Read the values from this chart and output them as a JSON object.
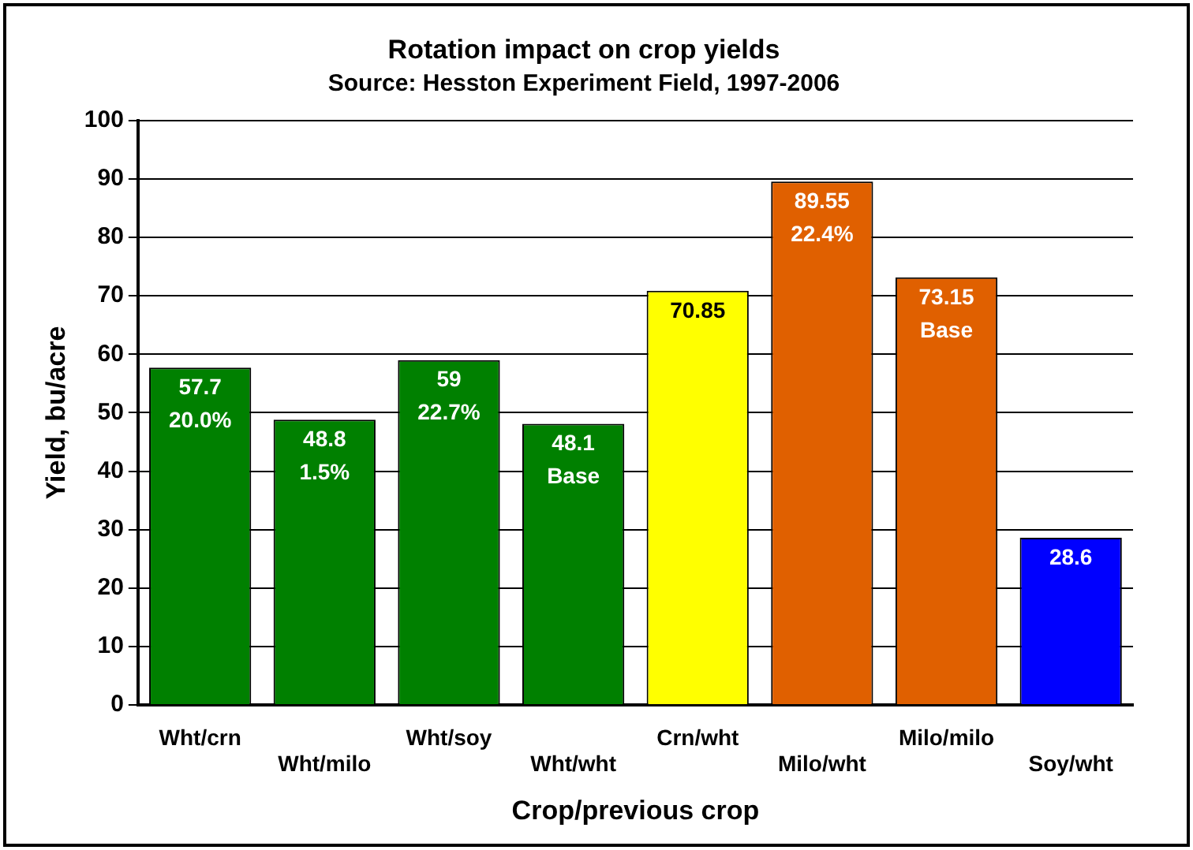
{
  "chart_data": {
    "type": "bar",
    "title": "Rotation impact on crop yields",
    "subtitle": "Source: Hesston Experiment Field, 1997-2006",
    "xlabel": "Crop/previous crop",
    "ylabel": "Yield, bu/acre",
    "categories": [
      "Wht/crn",
      "Wht/milo",
      "Wht/soy",
      "Wht/wht",
      "Crn/wht",
      "Milo/wht",
      "Milo/milo",
      "Soy/wht"
    ],
    "values": [
      57.7,
      48.8,
      59,
      48.1,
      70.85,
      89.55,
      73.15,
      28.6
    ],
    "colors": [
      "#008000",
      "#008000",
      "#008000",
      "#008000",
      "#ffff00",
      "#e06000",
      "#e06000",
      "#0000ff"
    ],
    "value_labels": [
      "57.7\n20.0%",
      "48.8\n1.5%",
      "59\n22.7%",
      "48.1\nBase",
      "70.85",
      "89.55\n22.4%",
      "73.15\nBase",
      "28.6"
    ],
    "ylim": [
      0,
      100
    ],
    "yticks": [
      0,
      10,
      20,
      30,
      40,
      50,
      60,
      70,
      80,
      90,
      100
    ],
    "grid": "y",
    "legend": false
  }
}
